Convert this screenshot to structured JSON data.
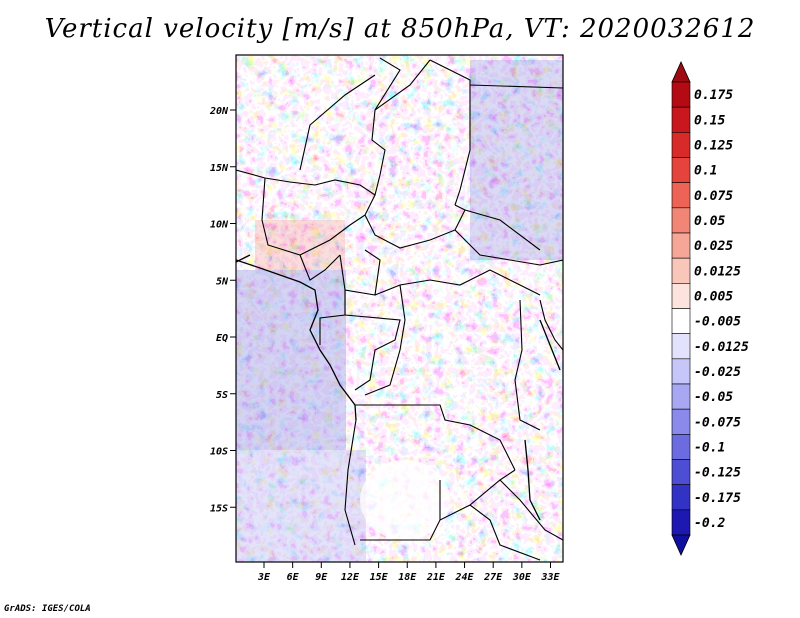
{
  "title": "Vertical velocity [m/s] at 850hPa, VT: 2020032612",
  "credit": "GrADS: IGES/COLA",
  "map": {
    "lat_ticks": [
      {
        "value": 20,
        "label": "20N"
      },
      {
        "value": 15,
        "label": "15N"
      },
      {
        "value": 10,
        "label": "10N"
      },
      {
        "value": 5,
        "label": "5N"
      },
      {
        "value": 0,
        "label": "EQ"
      },
      {
        "value": -5,
        "label": "5S"
      },
      {
        "value": -10,
        "label": "10S"
      },
      {
        "value": -15,
        "label": "15S"
      }
    ],
    "lon_ticks": [
      {
        "value": 3,
        "label": "3E"
      },
      {
        "value": 6,
        "label": "6E"
      },
      {
        "value": 9,
        "label": "9E"
      },
      {
        "value": 12,
        "label": "12E"
      },
      {
        "value": 15,
        "label": "15E"
      },
      {
        "value": 18,
        "label": "18E"
      },
      {
        "value": 21,
        "label": "21E"
      },
      {
        "value": 24,
        "label": "24E"
      },
      {
        "value": 27,
        "label": "27E"
      },
      {
        "value": 30,
        "label": "30E"
      },
      {
        "value": 33,
        "label": "33E"
      }
    ]
  },
  "colorbar": {
    "levels": [
      {
        "label": "0.175",
        "color": "#b40a14"
      },
      {
        "label": "0.15",
        "color": "#c8181e"
      },
      {
        "label": "0.125",
        "color": "#d82a28"
      },
      {
        "label": "0.1",
        "color": "#e5443c"
      },
      {
        "label": "0.075",
        "color": "#ed6456"
      },
      {
        "label": "0.05",
        "color": "#f28676"
      },
      {
        "label": "0.025",
        "color": "#f6a696"
      },
      {
        "label": "0.0125",
        "color": "#f9c6ba"
      },
      {
        "label": "0.005",
        "color": "#fce4dc"
      },
      {
        "label": "-0.005",
        "color": "#ffffff"
      },
      {
        "label": "-0.0125",
        "color": "#e2e2fc"
      },
      {
        "label": "-0.025",
        "color": "#c6c6f8"
      },
      {
        "label": "-0.05",
        "color": "#a8a8f2"
      },
      {
        "label": "-0.075",
        "color": "#8a8aea"
      },
      {
        "label": "-0.1",
        "color": "#6c6ce0"
      },
      {
        "label": "-0.125",
        "color": "#4e4ed4"
      },
      {
        "label": "-0.175",
        "color": "#3232c4"
      },
      {
        "label": "-0.2",
        "color": "#1c18b0"
      }
    ],
    "top_color": "#a00a12",
    "bottom_color": "#1010a0"
  }
}
